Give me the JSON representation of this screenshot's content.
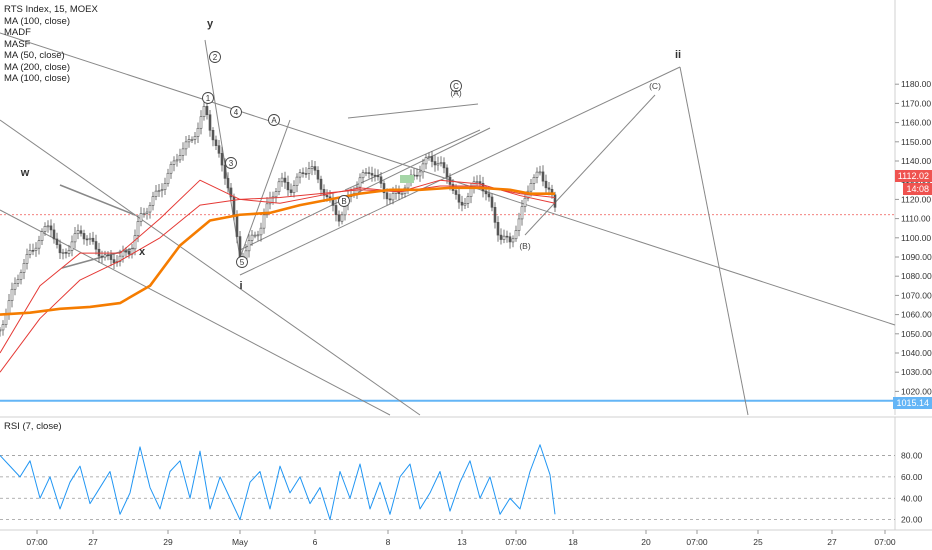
{
  "legend": [
    "RTS Index, 15, MOEX",
    "MA (100, close)",
    "MADF",
    "MASF",
    "MA (50, close)",
    "MA (200, close)",
    "MA (100, close)"
  ],
  "rsi_title": "RSI (7, close)",
  "price_tags": {
    "last": "1112.02",
    "countdown": "14:08",
    "level": "1015.14"
  },
  "colors": {
    "up": "#26a69a",
    "down": "#ef5350",
    "candle": "#555555",
    "ma_orange": "#f57c00",
    "ma_red": "#e53935",
    "rsi": "#2196f3",
    "level_line": "#64b5f6",
    "guide_lines": "#888888"
  },
  "chart_data": [
    {
      "type": "line",
      "title": "RTS Index, 15, MOEX",
      "y_ticks": [
        1020,
        1030,
        1040,
        1050,
        1060,
        1070,
        1080,
        1090,
        1100,
        1110,
        1120,
        1130,
        1140,
        1150,
        1160,
        1170,
        1180
      ],
      "x_ticks": [
        "07:00",
        "27",
        "29",
        "May",
        "6",
        "8",
        "13",
        "07:00",
        "18",
        "20",
        "07:00",
        "25",
        "27",
        "07:00"
      ],
      "ylim": [
        1010,
        1186
      ],
      "last_price": 1112.02,
      "horizontal_level": 1015.14,
      "series": [
        {
          "name": "RTS Index, 15, MOEX",
          "x": [
            0,
            10,
            20,
            30,
            40,
            50,
            60,
            70,
            80,
            90,
            100,
            110,
            120,
            130,
            140,
            150,
            160,
            170,
            180,
            190,
            200,
            205,
            210,
            220,
            230,
            240,
            250,
            260,
            270,
            280,
            290,
            300,
            310,
            320,
            330,
            340,
            350,
            360,
            370,
            380,
            390,
            400,
            410,
            420,
            430,
            440,
            450,
            460,
            470,
            480,
            490,
            500,
            510,
            520,
            530,
            540,
            550,
            555
          ],
          "values": [
            1052,
            1068,
            1083,
            1092,
            1100,
            1108,
            1090,
            1096,
            1104,
            1098,
            1092,
            1088,
            1090,
            1093,
            1110,
            1118,
            1125,
            1135,
            1145,
            1150,
            1160,
            1168,
            1158,
            1140,
            1125,
            1088,
            1098,
            1105,
            1120,
            1130,
            1125,
            1132,
            1138,
            1128,
            1118,
            1110,
            1122,
            1130,
            1136,
            1128,
            1120,
            1124,
            1130,
            1136,
            1142,
            1138,
            1130,
            1115,
            1125,
            1130,
            1118,
            1100,
            1098,
            1110,
            1130,
            1133,
            1125,
            1114
          ]
        },
        {
          "name": "MA (50, close)",
          "x": [
            0,
            40,
            80,
            120,
            160,
            200,
            240,
            280,
            320,
            360,
            400,
            440,
            480,
            520,
            555
          ],
          "values": [
            1040,
            1075,
            1092,
            1092,
            1110,
            1130,
            1120,
            1118,
            1122,
            1126,
            1124,
            1130,
            1128,
            1122,
            1118
          ]
        },
        {
          "name": "MA (100, close)",
          "x": [
            0,
            40,
            80,
            120,
            160,
            200,
            240,
            280,
            320,
            360,
            400,
            440,
            480,
            520,
            555
          ],
          "values": [
            1030,
            1058,
            1078,
            1088,
            1100,
            1117,
            1120,
            1121,
            1123,
            1125,
            1124,
            1127,
            1127,
            1123,
            1121
          ]
        },
        {
          "name": "MA (200, close)",
          "x": [
            0,
            30,
            60,
            90,
            120,
            150,
            180,
            210,
            240,
            270,
            300,
            330,
            360,
            390,
            420,
            450,
            480,
            510,
            530,
            555
          ],
          "values": [
            1060,
            1061,
            1063,
            1064,
            1066,
            1075,
            1096,
            1109,
            1112,
            1113,
            1117,
            1120,
            1123,
            1125,
            1125,
            1126,
            1126,
            1125,
            1123,
            1123
          ]
        }
      ]
    },
    {
      "type": "line",
      "title": "RSI (7, close)",
      "y_ticks": [
        20,
        40,
        60,
        80
      ],
      "ylim": [
        10,
        95
      ],
      "series": [
        {
          "name": "RSI (7, close)",
          "x": [
            0,
            10,
            20,
            30,
            40,
            50,
            60,
            70,
            80,
            90,
            100,
            110,
            120,
            130,
            140,
            150,
            160,
            170,
            180,
            190,
            200,
            210,
            220,
            230,
            240,
            250,
            260,
            270,
            280,
            290,
            300,
            310,
            320,
            330,
            340,
            350,
            360,
            370,
            380,
            390,
            400,
            410,
            420,
            430,
            440,
            450,
            460,
            470,
            480,
            490,
            500,
            510,
            520,
            530,
            540,
            550,
            555
          ],
          "values": [
            80,
            70,
            60,
            75,
            40,
            60,
            30,
            55,
            70,
            35,
            50,
            65,
            25,
            45,
            88,
            50,
            30,
            65,
            75,
            40,
            84,
            30,
            60,
            40,
            20,
            55,
            65,
            30,
            70,
            45,
            60,
            35,
            50,
            20,
            65,
            40,
            72,
            30,
            55,
            25,
            60,
            72,
            30,
            45,
            65,
            28,
            55,
            75,
            40,
            60,
            25,
            40,
            30,
            65,
            90,
            62,
            25
          ]
        }
      ]
    }
  ],
  "annotations": {
    "wave_labels": [
      "w",
      "x",
      "y",
      "i",
      "ii"
    ],
    "circled_labels": [
      "1",
      "2",
      "3",
      "4",
      "5",
      "A",
      "B",
      "C"
    ],
    "paren_labels": [
      "(A)",
      "(B)",
      "(C)"
    ]
  }
}
